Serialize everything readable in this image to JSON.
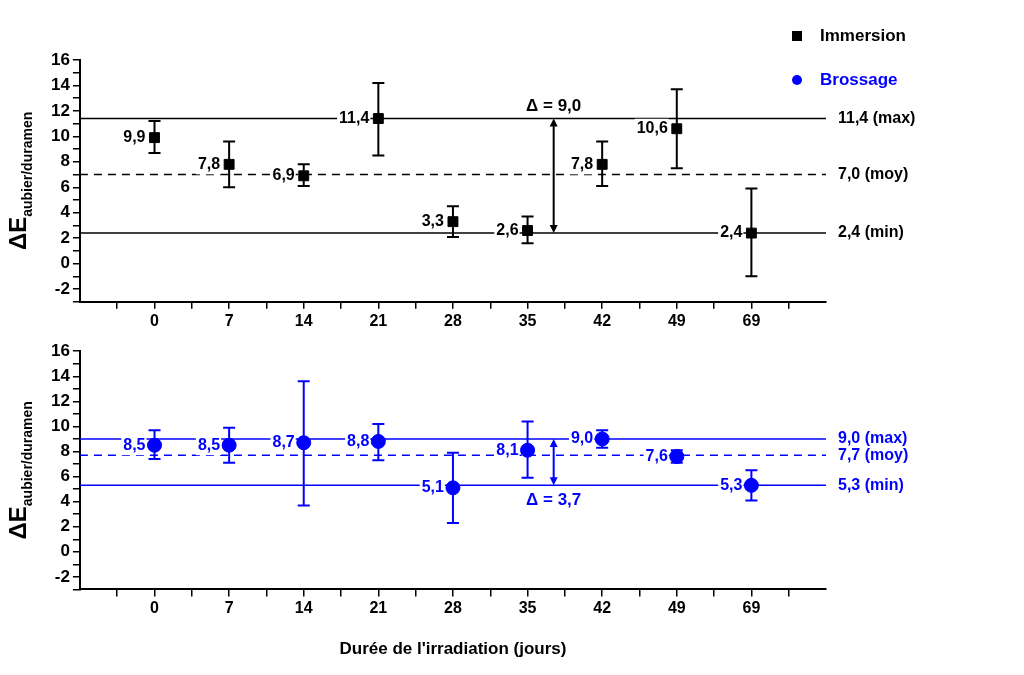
{
  "chart_data": [
    {
      "type": "scatter",
      "categories": [
        "0",
        "7",
        "14",
        "21",
        "28",
        "35",
        "42",
        "49",
        "69"
      ],
      "series": [
        {
          "name": "Immersion",
          "color": "#000000",
          "values": [
            9.9,
            7.8,
            6.9,
            11.4,
            3.3,
            2.6,
            7.8,
            10.6,
            2.4
          ],
          "errors": [
            [
              8.7,
              11.2
            ],
            [
              6.0,
              9.6
            ],
            [
              6.1,
              7.8
            ],
            [
              8.5,
              14.2
            ],
            [
              2.1,
              4.5
            ],
            [
              1.6,
              3.7
            ],
            [
              6.1,
              9.6
            ],
            [
              7.5,
              13.7
            ],
            [
              -1.0,
              5.9
            ]
          ],
          "value_labels": [
            "9,9",
            "7,8",
            "6,9",
            "11,4",
            "3,3",
            "2,6",
            "7,8",
            "10,6",
            "2,4"
          ]
        }
      ],
      "marker": "square",
      "ylabel": "ΔE$_{aubier/duramen}$",
      "ylim": [
        -3,
        16
      ],
      "yticks": [
        {
          "value": -3,
          "label": null
        },
        -2,
        {
          "value": -1,
          "label": null
        },
        0,
        {
          "value": 1,
          "label": null
        },
        2,
        {
          "value": 3,
          "label": null
        },
        4,
        {
          "value": 5,
          "label": null
        },
        6,
        {
          "value": 7,
          "label": null
        },
        8,
        {
          "value": 9,
          "label": null
        },
        10,
        {
          "value": 11,
          "label": null
        },
        12,
        {
          "value": 13,
          "label": null
        },
        14,
        {
          "value": 15,
          "label": null
        },
        16
      ],
      "ref_lines": [
        {
          "axis": "y",
          "value": 11.4,
          "label": "11,4 (max)",
          "color": "#000000",
          "line_style": "solid"
        },
        {
          "axis": "y",
          "value": 7.0,
          "label": "7,0 (moy)",
          "color": "#000000",
          "line_style": "dashed"
        },
        {
          "axis": "y",
          "value": 2.4,
          "label": "2,4 (min)",
          "color": "#000000",
          "line_style": "solid"
        }
      ],
      "annotations": [
        {
          "text": "Δ = 9,0",
          "y": 11.4
        }
      ],
      "legend": "top right",
      "grid": false
    },
    {
      "type": "scatter",
      "categories": [
        "0",
        "7",
        "14",
        "21",
        "28",
        "35",
        "42",
        "49",
        "69"
      ],
      "series": [
        {
          "name": "Brossage",
          "color": "#0000ff",
          "values": [
            8.5,
            8.5,
            8.7,
            8.8,
            5.1,
            8.1,
            9.0,
            7.6,
            5.3
          ],
          "errors": [
            [
              7.4,
              9.7
            ],
            [
              7.1,
              9.9
            ],
            [
              3.7,
              13.6
            ],
            [
              7.3,
              10.2
            ],
            [
              2.3,
              7.9
            ],
            [
              5.9,
              10.4
            ],
            [
              8.3,
              9.7
            ],
            [
              7.1,
              8.1
            ],
            [
              4.1,
              6.5
            ]
          ],
          "value_labels": [
            "8,5",
            "8,5",
            "8,7",
            "8,8",
            "5,1",
            "8,1",
            "9,0",
            "7,6",
            "5,3"
          ]
        }
      ],
      "marker": "circle",
      "xlabel": "Durée de l'irradiation (jours)",
      "ylabel": "ΔE$_{aubier/duramen}$",
      "ylim": [
        -3,
        16
      ],
      "yticks": [
        {
          "value": -3,
          "label": null
        },
        -2,
        {
          "value": -1,
          "label": null
        },
        0,
        {
          "value": 1,
          "label": null
        },
        2,
        {
          "value": 3,
          "label": null
        },
        4,
        {
          "value": 5,
          "label": null
        },
        6,
        {
          "value": 7,
          "label": null
        },
        8,
        {
          "value": 9,
          "label": null
        },
        10,
        {
          "value": 11,
          "label": null
        },
        12,
        {
          "value": 13,
          "label": null
        },
        14,
        {
          "value": 15,
          "label": null
        },
        16
      ],
      "ref_lines": [
        {
          "axis": "y",
          "value": 9.0,
          "label": "9,0 (max)",
          "color": "#0000ff",
          "line_style": "solid"
        },
        {
          "axis": "y",
          "value": 7.7,
          "label": "7,7 (moy)",
          "color": "#0000ff",
          "line_style": "dashed"
        },
        {
          "axis": "y",
          "value": 5.3,
          "label": "5,3 (min)",
          "color": "#0000ff",
          "line_style": "solid"
        }
      ],
      "annotations": [
        {
          "text": "Δ = 3,7",
          "y": 5.3
        }
      ],
      "legend": "top right",
      "grid": false
    }
  ]
}
